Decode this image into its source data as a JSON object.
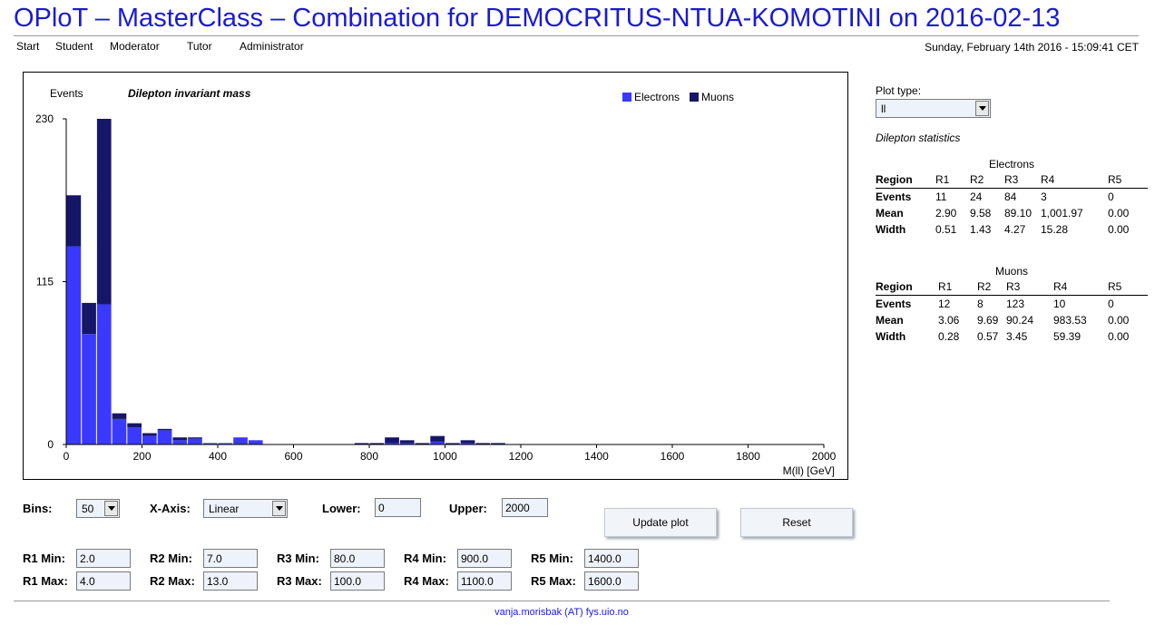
{
  "page": {
    "title": "OPloT – MasterClass – Combination for DEMOCRITUS-NTUA-KOMOTINI on 2016-02-13",
    "nav": [
      "Start",
      "Student",
      "Moderator",
      "Tutor",
      "Administrator"
    ],
    "datetime": "Sunday, February 14th 2016 - 15:09:41 CET",
    "footer": "vanja.morisbak (AT) fys.uio.no"
  },
  "colors": {
    "electrons": "#3a3aff",
    "muons": "#161668",
    "title": "#1a1ad6"
  },
  "chart_data": {
    "type": "bar",
    "title": "Dilepton invariant mass",
    "ylabel": "Events",
    "xlabel": "M(ll) [GeV]",
    "xlim": [
      0,
      2000
    ],
    "ylim": [
      0,
      230
    ],
    "xticks": [
      "0",
      "200",
      "400",
      "600",
      "800",
      "1000",
      "1200",
      "1400",
      "1600",
      "1800",
      "2000"
    ],
    "yticks": [
      "0",
      "115",
      "230"
    ],
    "bin_width": 40,
    "stacked": true,
    "legend_position": "top-right",
    "x": [
      0,
      40,
      80,
      120,
      160,
      200,
      240,
      280,
      320,
      360,
      400,
      440,
      480,
      760,
      800,
      840,
      880,
      920,
      960,
      1000,
      1040,
      1080,
      1120
    ],
    "series": [
      {
        "name": "Electrons",
        "values": [
          140,
          78,
          99,
          18,
          12,
          6,
          10,
          3,
          4,
          1,
          1,
          5,
          3,
          0,
          0,
          1,
          1,
          0,
          2,
          0,
          1,
          0,
          0
        ]
      },
      {
        "name": "Muons",
        "values": [
          36,
          22,
          131,
          4,
          3,
          2,
          1,
          2,
          1,
          0,
          0,
          0,
          0,
          1,
          1,
          4,
          2,
          1,
          4,
          1,
          2,
          1,
          1
        ]
      }
    ]
  },
  "sidebar": {
    "plot_type_label": "Plot type:",
    "plot_type_value": "ll",
    "stats_title": "Dilepton statistics",
    "electrons": {
      "caption": "Electrons",
      "header": [
        "Region",
        "R1",
        "R2",
        "R3",
        "R4",
        "R5"
      ],
      "rows": [
        [
          "Events",
          "11",
          "24",
          "84",
          "3",
          "0"
        ],
        [
          "Mean",
          "2.90",
          "9.58",
          "89.10",
          "1,001.97",
          "0.00"
        ],
        [
          "Width",
          "0.51",
          "1.43",
          "4.27",
          "15.28",
          "0.00"
        ]
      ]
    },
    "muons": {
      "caption": "Muons",
      "header": [
        "Region",
        "R1",
        "R2",
        "R3",
        "R4",
        "R5"
      ],
      "rows": [
        [
          "Events",
          "12",
          "8",
          "123",
          "10",
          "0"
        ],
        [
          "Mean",
          "3.06",
          "9.69",
          "90.24",
          "983.53",
          "0.00"
        ],
        [
          "Width",
          "0.28",
          "0.57",
          "3.45",
          "59.39",
          "0.00"
        ]
      ]
    }
  },
  "controls": {
    "bins_label": "Bins:",
    "bins_value": "50",
    "xaxis_label": "X-Axis:",
    "xaxis_value": "Linear",
    "lower_label": "Lower:",
    "lower_value": "0",
    "upper_label": "Upper:",
    "upper_value": "2000",
    "update_label": "Update plot",
    "reset_label": "Reset",
    "regions": [
      {
        "min_label": "R1 Min:",
        "min": "2.0",
        "max_label": "R1 Max:",
        "max": "4.0"
      },
      {
        "min_label": "R2 Min:",
        "min": "7.0",
        "max_label": "R2 Max:",
        "max": "13.0"
      },
      {
        "min_label": "R3 Min:",
        "min": "80.0",
        "max_label": "R3 Max:",
        "max": "100.0"
      },
      {
        "min_label": "R4 Min:",
        "min": "900.0",
        "max_label": "R4 Max:",
        "max": "1100.0"
      },
      {
        "min_label": "R5 Min:",
        "min": "1400.0",
        "max_label": "R5 Max:",
        "max": "1600.0"
      }
    ]
  }
}
